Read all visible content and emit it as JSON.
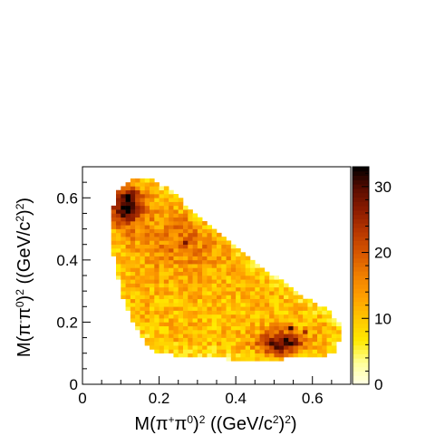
{
  "chart_data": {
    "type": "heatmap",
    "title": "",
    "xlabel": {
      "parts": [
        {
          "t": "M(π",
          "s": null
        },
        {
          "t": "+",
          "s": "sup"
        },
        {
          "t": "π",
          "s": null
        },
        {
          "t": "0",
          "s": "sup"
        },
        {
          "t": ")",
          "s": null
        },
        {
          "t": "2",
          "s": "sup"
        },
        {
          "t": " ((GeV/c",
          "s": null
        },
        {
          "t": "2",
          "s": "sup"
        },
        {
          "t": ")",
          "s": null
        },
        {
          "t": "2",
          "s": "sup"
        },
        {
          "t": ")",
          "s": null
        }
      ]
    },
    "ylabel": {
      "parts": [
        {
          "t": "M(π",
          "s": null
        },
        {
          "t": "-",
          "s": "sup"
        },
        {
          "t": "π",
          "s": null
        },
        {
          "t": "0",
          "s": "sup"
        },
        {
          "t": ")",
          "s": null
        },
        {
          "t": "2",
          "s": "sup"
        },
        {
          "t": " ((GeV/c",
          "s": null
        },
        {
          "t": "2",
          "s": "sup"
        },
        {
          "t": ")",
          "s": null
        },
        {
          "t": "2",
          "s": "sup"
        },
        {
          "t": ")",
          "s": null
        }
      ]
    },
    "xlim": [
      0,
      0.7
    ],
    "ylim": [
      0,
      0.7
    ],
    "xticks": [
      0,
      0.2,
      0.4,
      0.6
    ],
    "xticklabels": [
      "0",
      "0.2",
      "0.4",
      "0.6"
    ],
    "yticks": [
      0,
      0.2,
      0.4,
      0.6
    ],
    "yticklabels": [
      "0",
      "0.2",
      "0.4",
      "0.6"
    ],
    "zlim": [
      0,
      33
    ],
    "zticks": [
      0,
      10,
      20,
      30
    ],
    "zticklabels": [
      "0",
      "10",
      "20",
      "30"
    ],
    "bin_width": 0.0125,
    "colormap": [
      "#ffffe6",
      "#ffff99",
      "#ffea00",
      "#ffc800",
      "#ffa000",
      "#f08000",
      "#d85800",
      "#b83800",
      "#8c1c00",
      "#5a0c00",
      "#000000"
    ],
    "boundary_upper": [
      [
        0.07,
        0.53
      ],
      [
        0.09,
        0.62
      ],
      [
        0.13,
        0.66
      ],
      [
        0.18,
        0.665
      ],
      [
        0.24,
        0.615
      ],
      [
        0.31,
        0.53
      ],
      [
        0.4,
        0.44
      ],
      [
        0.5,
        0.35
      ],
      [
        0.58,
        0.28
      ],
      [
        0.64,
        0.24
      ],
      [
        0.68,
        0.18
      ]
    ],
    "boundary_lower": [
      [
        0.07,
        0.53
      ],
      [
        0.08,
        0.42
      ],
      [
        0.1,
        0.3
      ],
      [
        0.13,
        0.2
      ],
      [
        0.16,
        0.14
      ],
      [
        0.2,
        0.1
      ],
      [
        0.28,
        0.085
      ],
      [
        0.4,
        0.08
      ],
      [
        0.5,
        0.08
      ],
      [
        0.6,
        0.085
      ],
      [
        0.66,
        0.1
      ],
      [
        0.68,
        0.18
      ]
    ],
    "hotspots": [
      {
        "x": 0.11,
        "y": 0.58,
        "value": 22,
        "sx": 0.045,
        "sy": 0.07
      },
      {
        "x": 0.52,
        "y": 0.13,
        "value": 20,
        "sx": 0.06,
        "sy": 0.04
      },
      {
        "x": 0.26,
        "y": 0.46,
        "value": 6,
        "sx": 0.12,
        "sy": 0.1
      }
    ],
    "peak_cells": [
      {
        "x": 0.11,
        "y": 0.575,
        "value": 33
      },
      {
        "x": 0.525,
        "y": 0.15,
        "value": 32
      },
      {
        "x": 0.54,
        "y": 0.185,
        "value": 31
      },
      {
        "x": 0.27,
        "y": 0.455,
        "value": 28
      },
      {
        "x": 0.56,
        "y": 0.13,
        "value": 28
      },
      {
        "x": 0.49,
        "y": 0.14,
        "value": 27
      },
      {
        "x": 0.13,
        "y": 0.525,
        "value": 26
      },
      {
        "x": 0.58,
        "y": 0.165,
        "value": 25
      }
    ]
  }
}
